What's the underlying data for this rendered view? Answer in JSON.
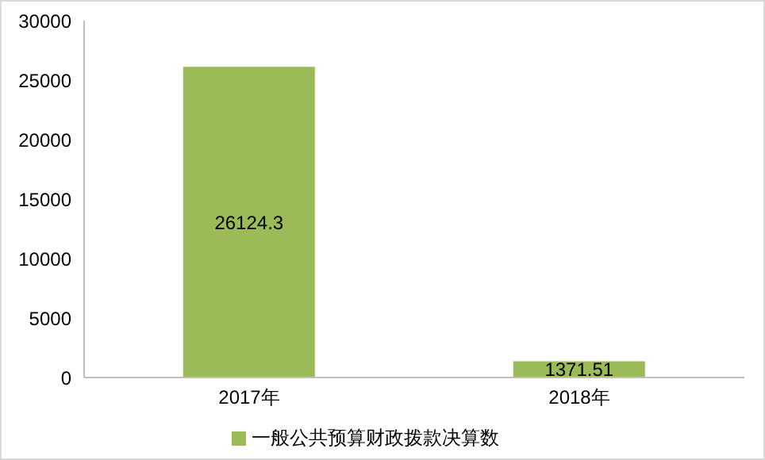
{
  "chart_data": {
    "type": "bar",
    "categories": [
      "2017年",
      "2018年"
    ],
    "series": [
      {
        "name": "一般公共预算财政拨款决算数",
        "color": "#9bbb59",
        "values": [
          26124.3,
          1371.51
        ]
      }
    ],
    "ylim": [
      0,
      30000
    ],
    "yticks": [
      0,
      5000,
      10000,
      15000,
      20000,
      25000,
      30000
    ],
    "grid": false,
    "legend": "bottom",
    "data_labels": true
  }
}
